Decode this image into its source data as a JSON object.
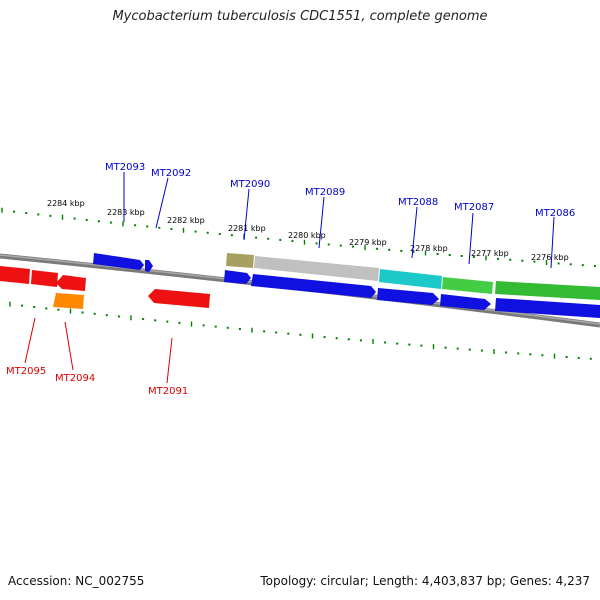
{
  "title": "Mycobacterium tuberculosis CDC1551, complete genome",
  "footer": {
    "accession": "Accession: NC_002755",
    "info": "Topology: circular; Length: 4,403,837 bp; Genes: 4,237"
  },
  "colors": {
    "backbone": "#808080",
    "ticks": "#008000",
    "forward_label": "#0000cc",
    "reverse_label": "#dd0000"
  },
  "kbp_labels": [
    "2284 kbp",
    "2283 kbp",
    "2282 kbp",
    "2281 kbp",
    "2280 kbp",
    "2279 kbp",
    "2278 kbp",
    "2277 kbp",
    "2276 kbp"
  ],
  "features": [
    {
      "name": "upper-gene-a",
      "strand": "outer-row",
      "color": "#1010e0",
      "arrow": "right"
    },
    {
      "name": "upper-gene-b",
      "strand": "outer-row",
      "color": "#1010e0",
      "arrow": "right"
    },
    {
      "name": "upper-gene-c",
      "strand": "outer-row",
      "color": "#aaa060",
      "arrow": "none"
    },
    {
      "name": "upper-gene-d",
      "strand": "outer-row",
      "color": "#bdbdbd",
      "arrow": "none"
    },
    {
      "name": "upper-gene-e",
      "strand": "outer-row",
      "color": "#18c8c8",
      "arrow": "none"
    },
    {
      "name": "upper-gene-f",
      "strand": "outer-row",
      "color": "#44cc44",
      "arrow": "none"
    },
    {
      "name": "upper-gene-g",
      "strand": "outer-row",
      "color": "#33bb33",
      "arrow": "none"
    },
    {
      "name": "lower-gene-a",
      "strand": "inner-row",
      "color": "#1010e0",
      "arrow": "right"
    },
    {
      "name": "lower-gene-b",
      "strand": "inner-row",
      "color": "#1010e0",
      "arrow": "right"
    },
    {
      "name": "lower-gene-c",
      "strand": "inner-row",
      "color": "#1010e0",
      "arrow": "right"
    },
    {
      "name": "lower-gene-d",
      "strand": "inner-row",
      "color": "#1010e0",
      "arrow": "right"
    },
    {
      "name": "lower-gene-e",
      "strand": "inner-row",
      "color": "#1010e0",
      "arrow": "none"
    },
    {
      "name": "reverse-gene-a",
      "strand": "reverse",
      "color": "#ee1111",
      "arrow": "none"
    },
    {
      "name": "reverse-gene-b",
      "strand": "reverse",
      "color": "#ee1111",
      "arrow": "none"
    },
    {
      "name": "reverse-gene-c",
      "strand": "reverse",
      "color": "#ee1111",
      "arrow": "left"
    },
    {
      "name": "reverse-gene-d",
      "strand": "reverse",
      "color": "#ff8800",
      "arrow": "none"
    },
    {
      "name": "reverse-gene-e",
      "strand": "reverse",
      "color": "#ee1111",
      "arrow": "left"
    }
  ],
  "forward_labels": [
    "MT2093",
    "MT2092",
    "MT2090",
    "MT2089",
    "MT2088",
    "MT2087",
    "MT2086"
  ],
  "reverse_labels": [
    "MT2095",
    "MT2094",
    "MT2091"
  ]
}
